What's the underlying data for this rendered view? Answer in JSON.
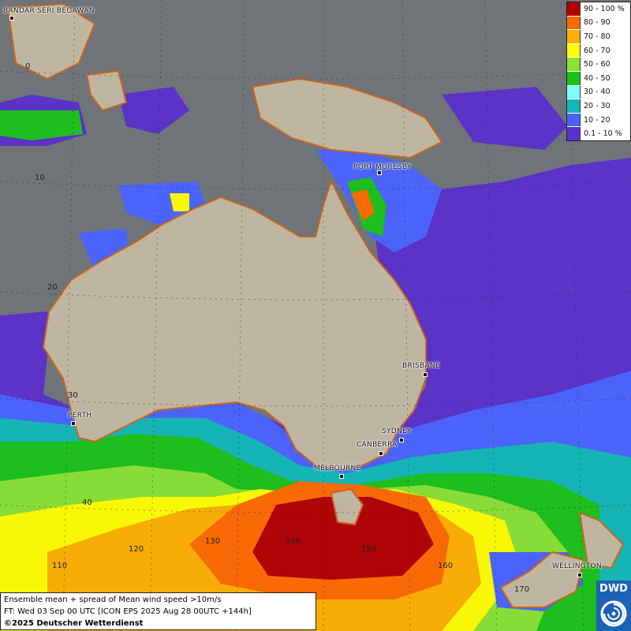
{
  "map": {
    "cities": [
      {
        "id": "bandar",
        "label": "BANDAR SERI BEGAWAN"
      },
      {
        "id": "moresby",
        "label": "PORT MORESBY"
      },
      {
        "id": "brisbane",
        "label": "BRISBANE"
      },
      {
        "id": "perth",
        "label": "PERTH"
      },
      {
        "id": "sydney",
        "label": "SYDNEY"
      },
      {
        "id": "canberra",
        "label": "CANBERRA"
      },
      {
        "id": "melbourne",
        "label": "MELBOURNE"
      },
      {
        "id": "wellington",
        "label": "WELLINGTON"
      }
    ],
    "latitude_labels": [
      "0",
      "10",
      "20",
      "30",
      "40"
    ],
    "longitude_labels": [
      "110",
      "120",
      "130",
      "140",
      "150",
      "160",
      "170"
    ]
  },
  "legend": {
    "items": [
      {
        "label": "90 - 100 %",
        "color": "#b30000"
      },
      {
        "label": "80 - 90",
        "color": "#ff6a00"
      },
      {
        "label": "70 - 80",
        "color": "#ffb000"
      },
      {
        "label": "60 - 70",
        "color": "#ffff00"
      },
      {
        "label": "50 - 60",
        "color": "#8ae234"
      },
      {
        "label": "40 - 50",
        "color": "#19c219"
      },
      {
        "label": "30 - 40",
        "color": "#7fffff"
      },
      {
        "label": "20 - 30",
        "color": "#12b8b8"
      },
      {
        "label": "10 - 20",
        "color": "#4a63ff"
      },
      {
        "label": "0.1 - 10 %",
        "color": "#5b30cc"
      }
    ]
  },
  "info": {
    "line1": "Ensemble mean + spread of Mean wind speed >10m/s",
    "line2": "FT: Wed 03 Sep 00 UTC [ICON EPS 2025 Aug 28 00UTC +144h]",
    "line3": "©2025 Deutscher Wetterdienst"
  },
  "logo": {
    "text": "DWD",
    "icon": "dwd-swirl-icon"
  }
}
